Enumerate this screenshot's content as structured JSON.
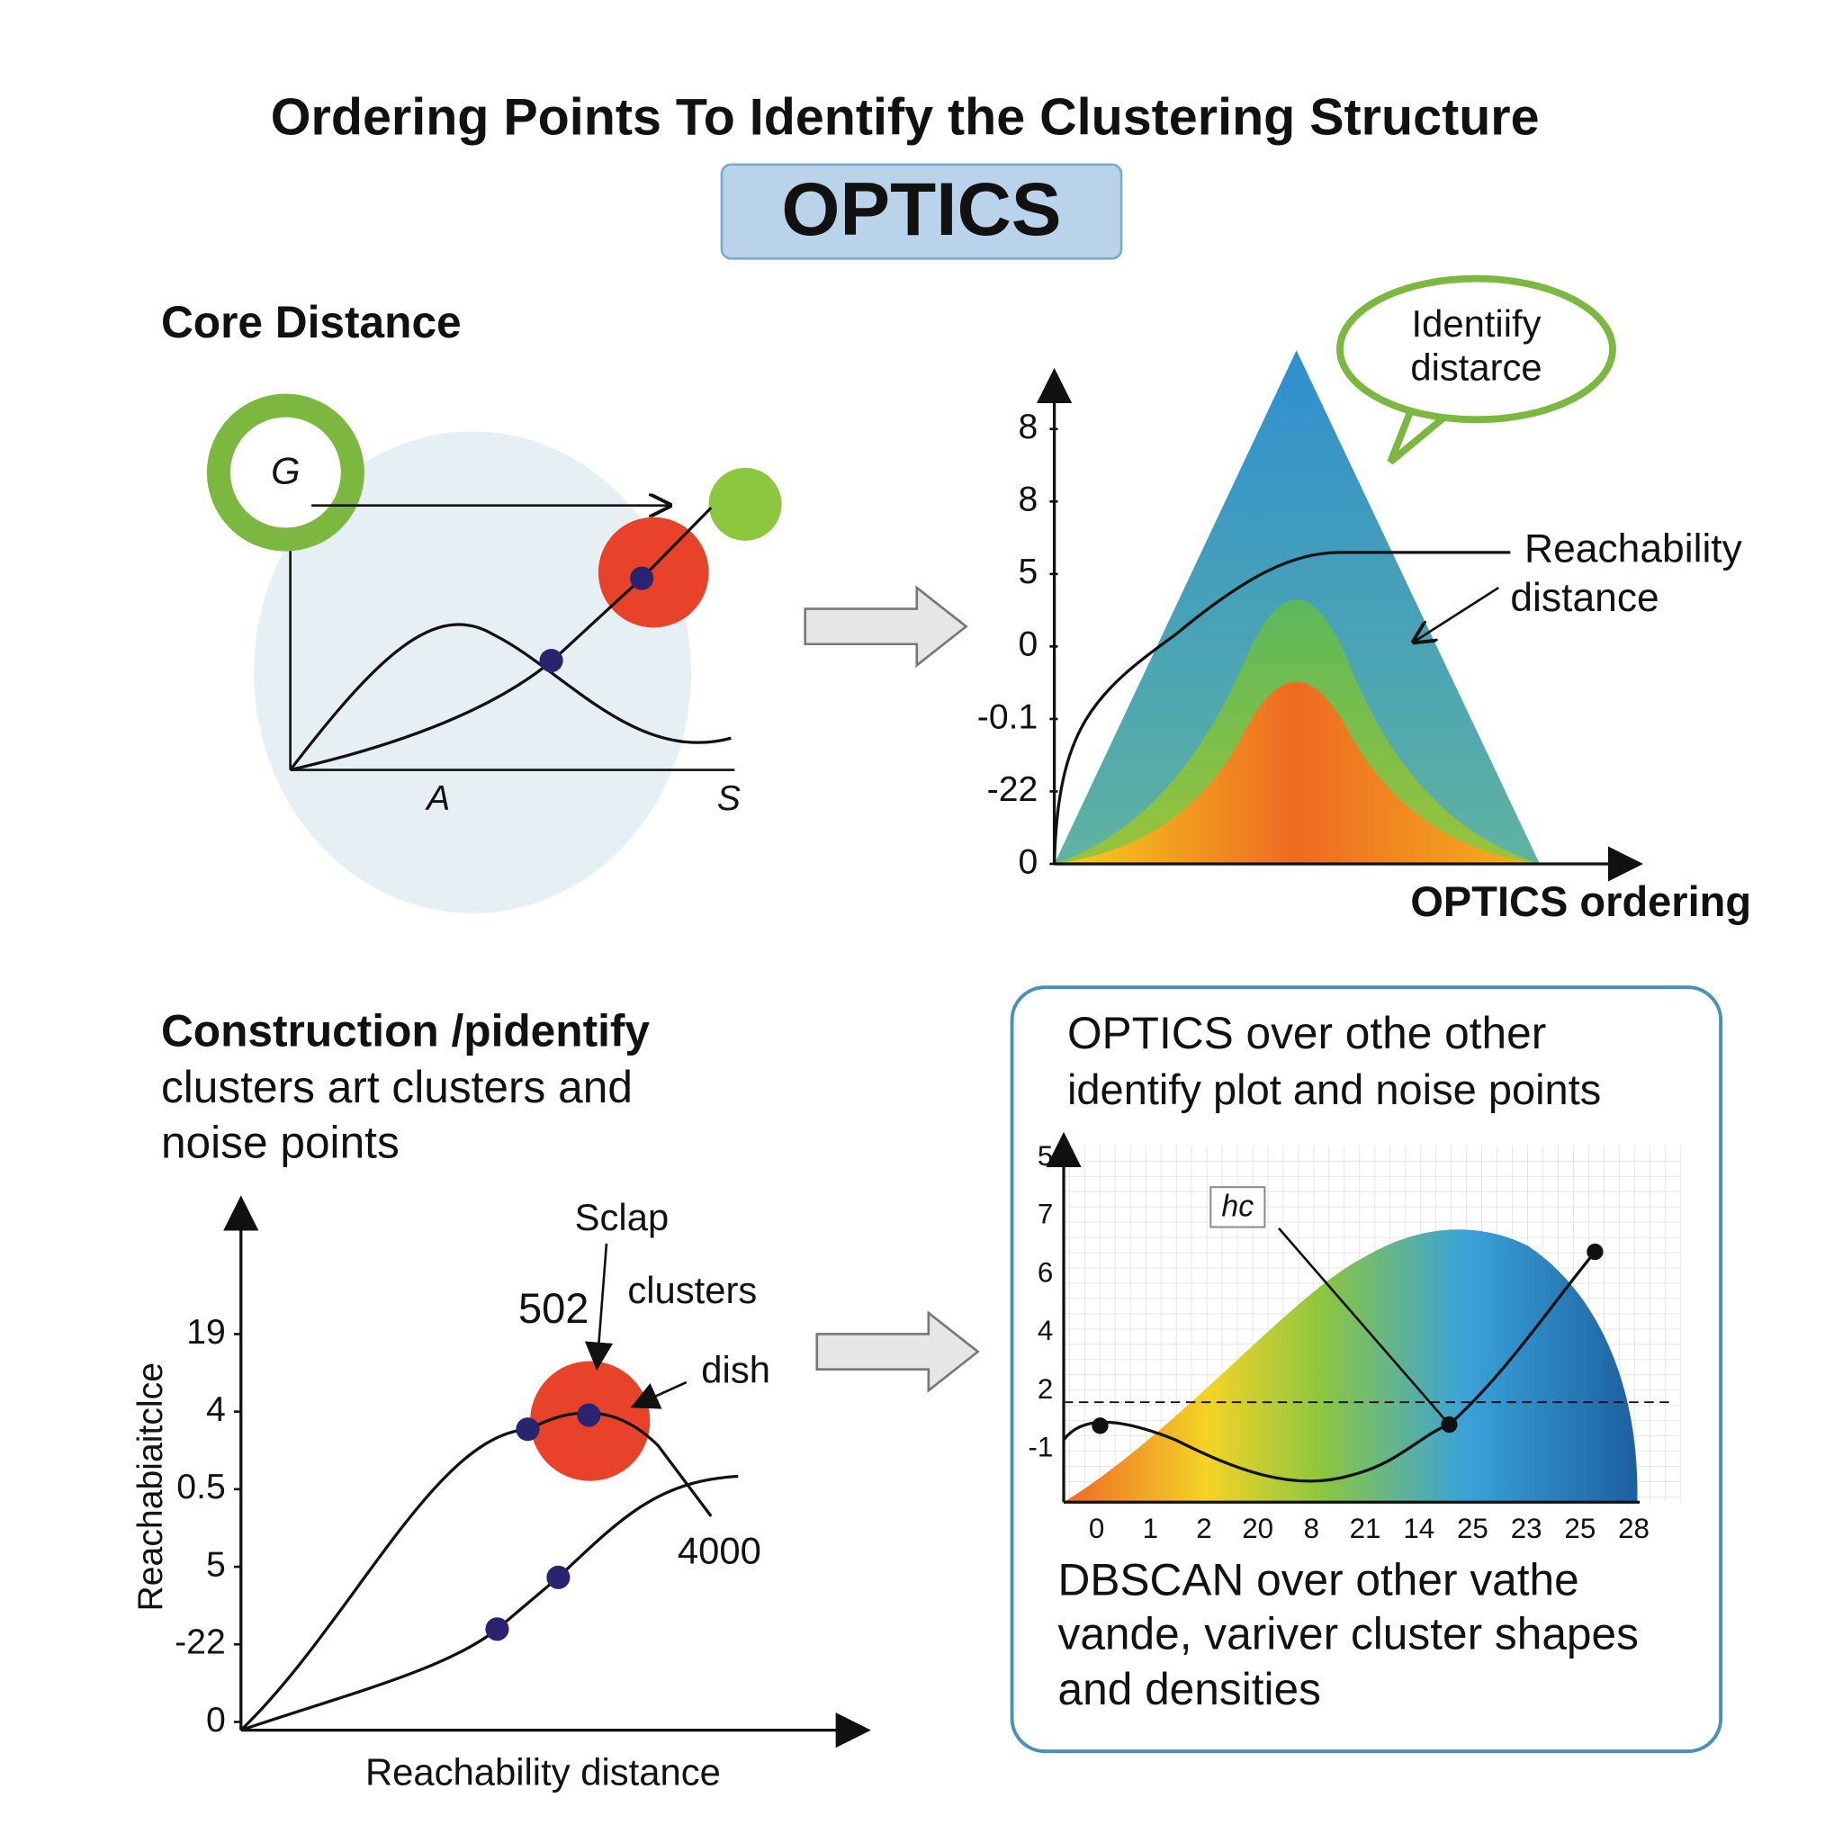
{
  "header": {
    "title": "Ordering Points To Identify the Clustering Structure",
    "badge": "OPTICS"
  },
  "core_panel": {
    "heading": "Core Distance",
    "labels": [
      "G",
      "A",
      "S"
    ]
  },
  "reach_panel": {
    "y_labels": [
      "8",
      "8",
      "5",
      "0",
      "-0.1",
      "-22",
      "0"
    ],
    "bubble": [
      "Identiify",
      "distarce"
    ],
    "annotation": [
      "Reachability",
      "distance"
    ],
    "x_label": "OPTICS ordering"
  },
  "construction_panel": {
    "heading": "Construction /pidentify",
    "text": [
      "clusters art clusters and",
      "noise points"
    ],
    "y_labels": [
      "19",
      "4",
      "0.5",
      "5",
      "-22",
      "0"
    ],
    "y_title": "Reachabiaitclce",
    "x_title": "Reachability distance",
    "annotations": [
      "Sclap",
      "502",
      "clusters",
      "dish",
      "4000"
    ]
  },
  "comparison_panel": {
    "heading": [
      "OPTICS over othe other",
      "identify plot and noise points"
    ],
    "y_labels": [
      "5",
      "7",
      "6",
      "4",
      "2",
      "-1"
    ],
    "x_labels": [
      "0",
      "1",
      "2",
      "20",
      "8",
      "21",
      "14",
      "25",
      "23",
      "25",
      "28"
    ],
    "marker": "hc",
    "footer": [
      "DBSCAN over other vathe",
      "vande, variver cluster shapes",
      "and densities"
    ]
  }
}
